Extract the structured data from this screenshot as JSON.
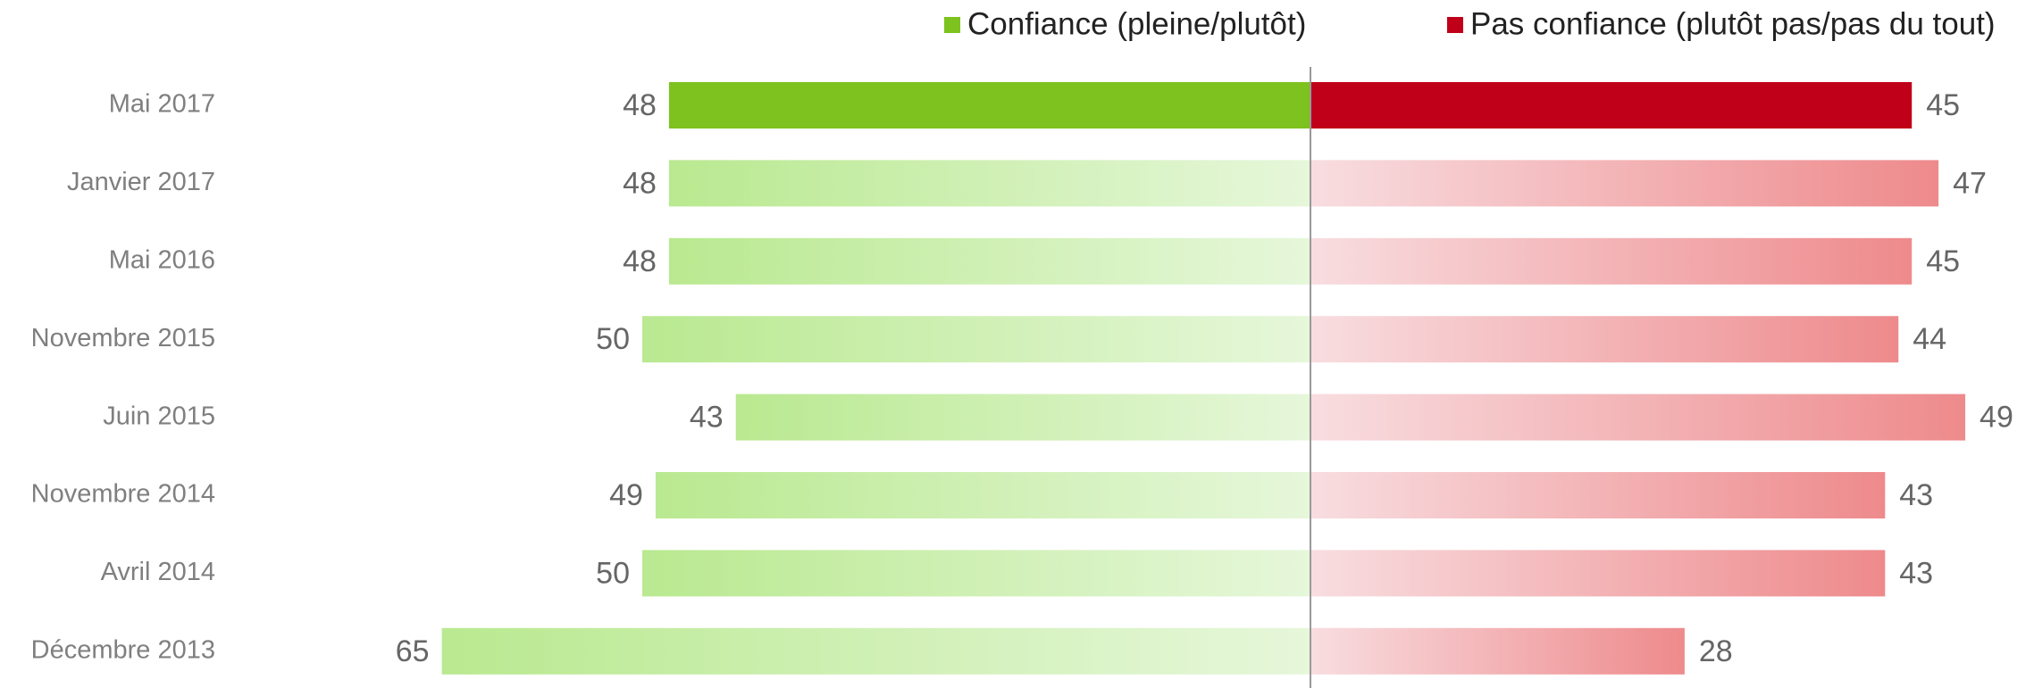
{
  "chart_data": {
    "type": "diverging_bar",
    "categories": [
      "Mai 2017",
      "Janvier 2017",
      "Mai 2016",
      "Novembre 2015",
      "Juin 2015",
      "Novembre 2014",
      "Avril 2014",
      "Décembre 2013"
    ],
    "series": [
      {
        "name": "Confiance (pleine/plutôt)",
        "color": "#7dc21e",
        "gradient": [
          "#b9e990",
          "#e6f7da"
        ],
        "values": [
          48,
          48,
          48,
          50,
          43,
          49,
          50,
          65
        ]
      },
      {
        "name": "Pas confiance (plutôt pas/pas du tout)",
        "color": "#c00018",
        "gradient": [
          "#f8dde0",
          "#ee8a8c"
        ],
        "values": [
          45,
          47,
          45,
          44,
          49,
          43,
          43,
          28
        ]
      }
    ]
  }
}
